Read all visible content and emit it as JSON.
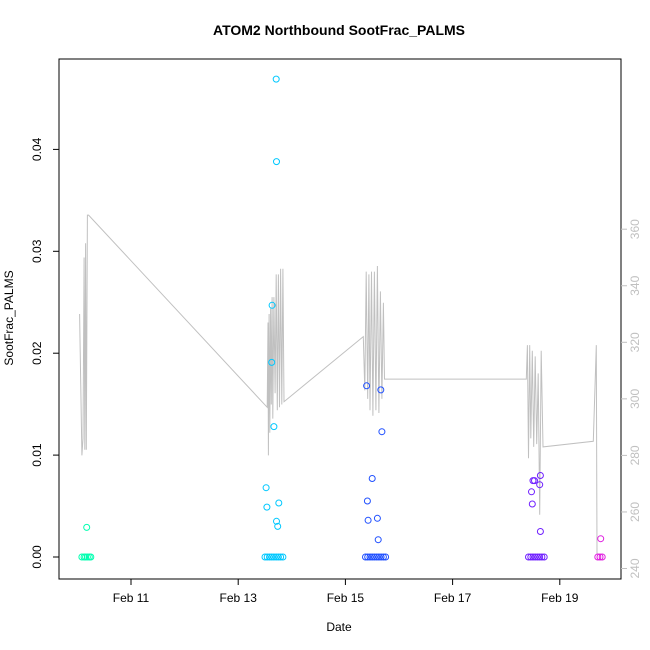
{
  "chart_data": {
    "type": "scatter",
    "title": "ATOM2 Northbound SootFrac_PALMS",
    "xlabel": "Date",
    "ylabel": "SootFrac_PALMS",
    "y2label": "",
    "ylim": [
      0,
      0.047
    ],
    "y_ticks": [
      "0.00",
      "0.01",
      "0.02",
      "0.03",
      "0.04"
    ],
    "y2lim": [
      240,
      366
    ],
    "y2_ticks": [
      "240",
      "260",
      "280",
      "300",
      "320",
      "340",
      "360"
    ],
    "x_ticks": [
      "Feb 11",
      "Feb 13",
      "Feb 15",
      "Feb 17",
      "Feb 19"
    ],
    "grid": false,
    "legend": "none",
    "point_color_scale": "rainbow by date (cyan-green to magenta)",
    "line_color": "#c0c0c0",
    "points": [
      {
        "x": "2017-02-10 02:00",
        "y": 0.0,
        "color": "#00ffb0"
      },
      {
        "x": "2017-02-10 03:00",
        "y": 0.0,
        "color": "#00ffb0"
      },
      {
        "x": "2017-02-10 03:40",
        "y": 0.0,
        "color": "#00ffb0"
      },
      {
        "x": "2017-02-10 04:30",
        "y": 0.0,
        "color": "#00ffb0"
      },
      {
        "x": "2017-02-10 05:20",
        "y": 0.0,
        "color": "#00ffb0"
      },
      {
        "x": "2017-02-10 06:00",
        "y": 0.0,
        "color": "#00ffb0"
      },
      {
        "x": "2017-02-10 04:10",
        "y": 0.0029,
        "color": "#00ffb0"
      },
      {
        "x": "2017-02-13 12:00",
        "y": 0.0,
        "color": "#00c8ff"
      },
      {
        "x": "2017-02-13 13:00",
        "y": 0.0,
        "color": "#00c8ff"
      },
      {
        "x": "2017-02-13 14:00",
        "y": 0.0,
        "color": "#00c8ff"
      },
      {
        "x": "2017-02-13 15:00",
        "y": 0.0,
        "color": "#00c8ff"
      },
      {
        "x": "2017-02-13 16:00",
        "y": 0.0,
        "color": "#00c8ff"
      },
      {
        "x": "2017-02-13 17:00",
        "y": 0.0,
        "color": "#00c8ff"
      },
      {
        "x": "2017-02-13 18:00",
        "y": 0.0,
        "color": "#00c8ff"
      },
      {
        "x": "2017-02-13 19:00",
        "y": 0.0,
        "color": "#00c8ff"
      },
      {
        "x": "2017-02-13 20:00",
        "y": 0.0,
        "color": "#00c8ff"
      },
      {
        "x": "2017-02-13 12:30",
        "y": 0.0068,
        "color": "#00c8ff"
      },
      {
        "x": "2017-02-13 12:50",
        "y": 0.0049,
        "color": "#00c8ff"
      },
      {
        "x": "2017-02-13 15:00",
        "y": 0.0191,
        "color": "#00c8ff"
      },
      {
        "x": "2017-02-13 15:10",
        "y": 0.0247,
        "color": "#00c8ff"
      },
      {
        "x": "2017-02-13 16:00",
        "y": 0.0128,
        "color": "#00c8ff"
      },
      {
        "x": "2017-02-13 17:10",
        "y": 0.0035,
        "color": "#00c8ff"
      },
      {
        "x": "2017-02-13 17:40",
        "y": 0.003,
        "color": "#00c8ff"
      },
      {
        "x": "2017-02-13 18:10",
        "y": 0.0053,
        "color": "#00c8ff"
      },
      {
        "x": "2017-02-13 17:10",
        "y": 0.0388,
        "color": "#00c8ff"
      },
      {
        "x": "2017-02-13 17:00",
        "y": 0.0469,
        "color": "#00c8ff"
      },
      {
        "x": "2017-02-15 09:00",
        "y": 0.0,
        "color": "#2050ff"
      },
      {
        "x": "2017-02-15 10:00",
        "y": 0.0,
        "color": "#2050ff"
      },
      {
        "x": "2017-02-15 11:00",
        "y": 0.0,
        "color": "#2050ff"
      },
      {
        "x": "2017-02-15 12:00",
        "y": 0.0,
        "color": "#2050ff"
      },
      {
        "x": "2017-02-15 13:00",
        "y": 0.0,
        "color": "#2050ff"
      },
      {
        "x": "2017-02-15 14:00",
        "y": 0.0,
        "color": "#2050ff"
      },
      {
        "x": "2017-02-15 15:00",
        "y": 0.0,
        "color": "#2050ff"
      },
      {
        "x": "2017-02-15 16:00",
        "y": 0.0,
        "color": "#2050ff"
      },
      {
        "x": "2017-02-15 17:00",
        "y": 0.0,
        "color": "#2050ff"
      },
      {
        "x": "2017-02-15 18:00",
        "y": 0.0,
        "color": "#2050ff"
      },
      {
        "x": "2017-02-15 09:30",
        "y": 0.0168,
        "color": "#2050ff"
      },
      {
        "x": "2017-02-15 09:50",
        "y": 0.0055,
        "color": "#2050ff"
      },
      {
        "x": "2017-02-15 10:10",
        "y": 0.0036,
        "color": "#2050ff"
      },
      {
        "x": "2017-02-15 12:00",
        "y": 0.0077,
        "color": "#2050ff"
      },
      {
        "x": "2017-02-15 14:20",
        "y": 0.0038,
        "color": "#2050ff"
      },
      {
        "x": "2017-02-15 14:40",
        "y": 0.0017,
        "color": "#2050ff"
      },
      {
        "x": "2017-02-15 15:50",
        "y": 0.0164,
        "color": "#2050ff"
      },
      {
        "x": "2017-02-15 16:20",
        "y": 0.0123,
        "color": "#2050ff"
      },
      {
        "x": "2017-02-18 10:00",
        "y": 0.0,
        "color": "#7020ff"
      },
      {
        "x": "2017-02-18 11:00",
        "y": 0.0,
        "color": "#7020ff"
      },
      {
        "x": "2017-02-18 12:00",
        "y": 0.0,
        "color": "#7020ff"
      },
      {
        "x": "2017-02-18 13:00",
        "y": 0.0,
        "color": "#7020ff"
      },
      {
        "x": "2017-02-18 14:00",
        "y": 0.0,
        "color": "#7020ff"
      },
      {
        "x": "2017-02-18 15:00",
        "y": 0.0,
        "color": "#7020ff"
      },
      {
        "x": "2017-02-18 16:00",
        "y": 0.0,
        "color": "#7020ff"
      },
      {
        "x": "2017-02-18 17:00",
        "y": 0.0,
        "color": "#7020ff"
      },
      {
        "x": "2017-02-18 11:20",
        "y": 0.0064,
        "color": "#7020ff"
      },
      {
        "x": "2017-02-18 11:40",
        "y": 0.0052,
        "color": "#7020ff"
      },
      {
        "x": "2017-02-18 12:00",
        "y": 0.0075,
        "color": "#7020ff"
      },
      {
        "x": "2017-02-18 12:40",
        "y": 0.0075,
        "color": "#7020ff"
      },
      {
        "x": "2017-02-18 15:00",
        "y": 0.0071,
        "color": "#7020ff"
      },
      {
        "x": "2017-02-18 15:20",
        "y": 0.008,
        "color": "#7020ff"
      },
      {
        "x": "2017-02-18 15:20",
        "y": 0.0025,
        "color": "#7020ff"
      },
      {
        "x": "2017-02-19 17:00",
        "y": 0.0,
        "color": "#e020e0"
      },
      {
        "x": "2017-02-19 18:00",
        "y": 0.0,
        "color": "#e020e0"
      },
      {
        "x": "2017-02-19 19:00",
        "y": 0.0,
        "color": "#e020e0"
      },
      {
        "x": "2017-02-19 18:20",
        "y": 0.0018,
        "color": "#e020e0"
      }
    ],
    "line": [
      [
        "2017-02-10 01:00",
        330
      ],
      [
        "2017-02-10 02:00",
        280
      ],
      [
        "2017-02-10 02:30",
        286
      ],
      [
        "2017-02-10 03:00",
        350
      ],
      [
        "2017-02-10 03:20",
        282
      ],
      [
        "2017-02-10 03:40",
        355
      ],
      [
        "2017-02-10 04:00",
        282
      ],
      [
        "2017-02-10 04:30",
        365
      ],
      [
        "2017-02-10 05:00",
        365
      ],
      [
        "2017-02-13 13:00",
        297
      ],
      [
        "2017-02-13 13:20",
        327
      ],
      [
        "2017-02-13 13:30",
        280
      ],
      [
        "2017-02-13 13:50",
        330
      ],
      [
        "2017-02-13 14:10",
        288
      ],
      [
        "2017-02-13 14:30",
        332
      ],
      [
        "2017-02-13 14:50",
        298
      ],
      [
        "2017-02-13 15:10",
        336
      ],
      [
        "2017-02-13 15:30",
        293
      ],
      [
        "2017-02-13 16:00",
        336
      ],
      [
        "2017-02-13 16:30",
        302
      ],
      [
        "2017-02-13 17:00",
        344
      ],
      [
        "2017-02-13 17:30",
        296
      ],
      [
        "2017-02-13 18:00",
        344
      ],
      [
        "2017-02-13 18:30",
        297
      ],
      [
        "2017-02-13 19:00",
        346
      ],
      [
        "2017-02-13 19:30",
        298
      ],
      [
        "2017-02-13 20:00",
        346
      ],
      [
        "2017-02-13 20:30",
        299
      ],
      [
        "2017-02-15 08:00",
        322
      ],
      [
        "2017-02-15 08:40",
        303
      ],
      [
        "2017-02-15 09:20",
        345
      ],
      [
        "2017-02-15 10:00",
        300
      ],
      [
        "2017-02-15 10:30",
        344
      ],
      [
        "2017-02-15 11:00",
        296
      ],
      [
        "2017-02-15 11:40",
        345
      ],
      [
        "2017-02-15 12:20",
        294
      ],
      [
        "2017-02-15 13:00",
        345
      ],
      [
        "2017-02-15 13:40",
        296
      ],
      [
        "2017-02-15 14:20",
        347
      ],
      [
        "2017-02-15 15:00",
        295
      ],
      [
        "2017-02-15 15:40",
        338
      ],
      [
        "2017-02-15 16:20",
        300
      ],
      [
        "2017-02-15 17:00",
        334
      ],
      [
        "2017-02-15 17:30",
        307
      ],
      [
        "2017-02-18 09:00",
        307
      ],
      [
        "2017-02-18 09:30",
        319
      ],
      [
        "2017-02-18 10:00",
        279
      ],
      [
        "2017-02-18 10:30",
        319
      ],
      [
        "2017-02-18 11:00",
        286
      ],
      [
        "2017-02-18 11:40",
        317
      ],
      [
        "2017-02-18 12:20",
        283
      ],
      [
        "2017-02-18 13:00",
        315
      ],
      [
        "2017-02-18 13:40",
        284
      ],
      [
        "2017-02-18 14:20",
        309
      ],
      [
        "2017-02-18 15:00",
        259
      ],
      [
        "2017-02-18 15:40",
        317
      ],
      [
        "2017-02-18 16:30",
        283
      ],
      [
        "2017-02-19 15:00",
        285
      ],
      [
        "2017-02-19 16:20",
        319
      ],
      [
        "2017-02-19 16:40",
        245
      ]
    ]
  }
}
